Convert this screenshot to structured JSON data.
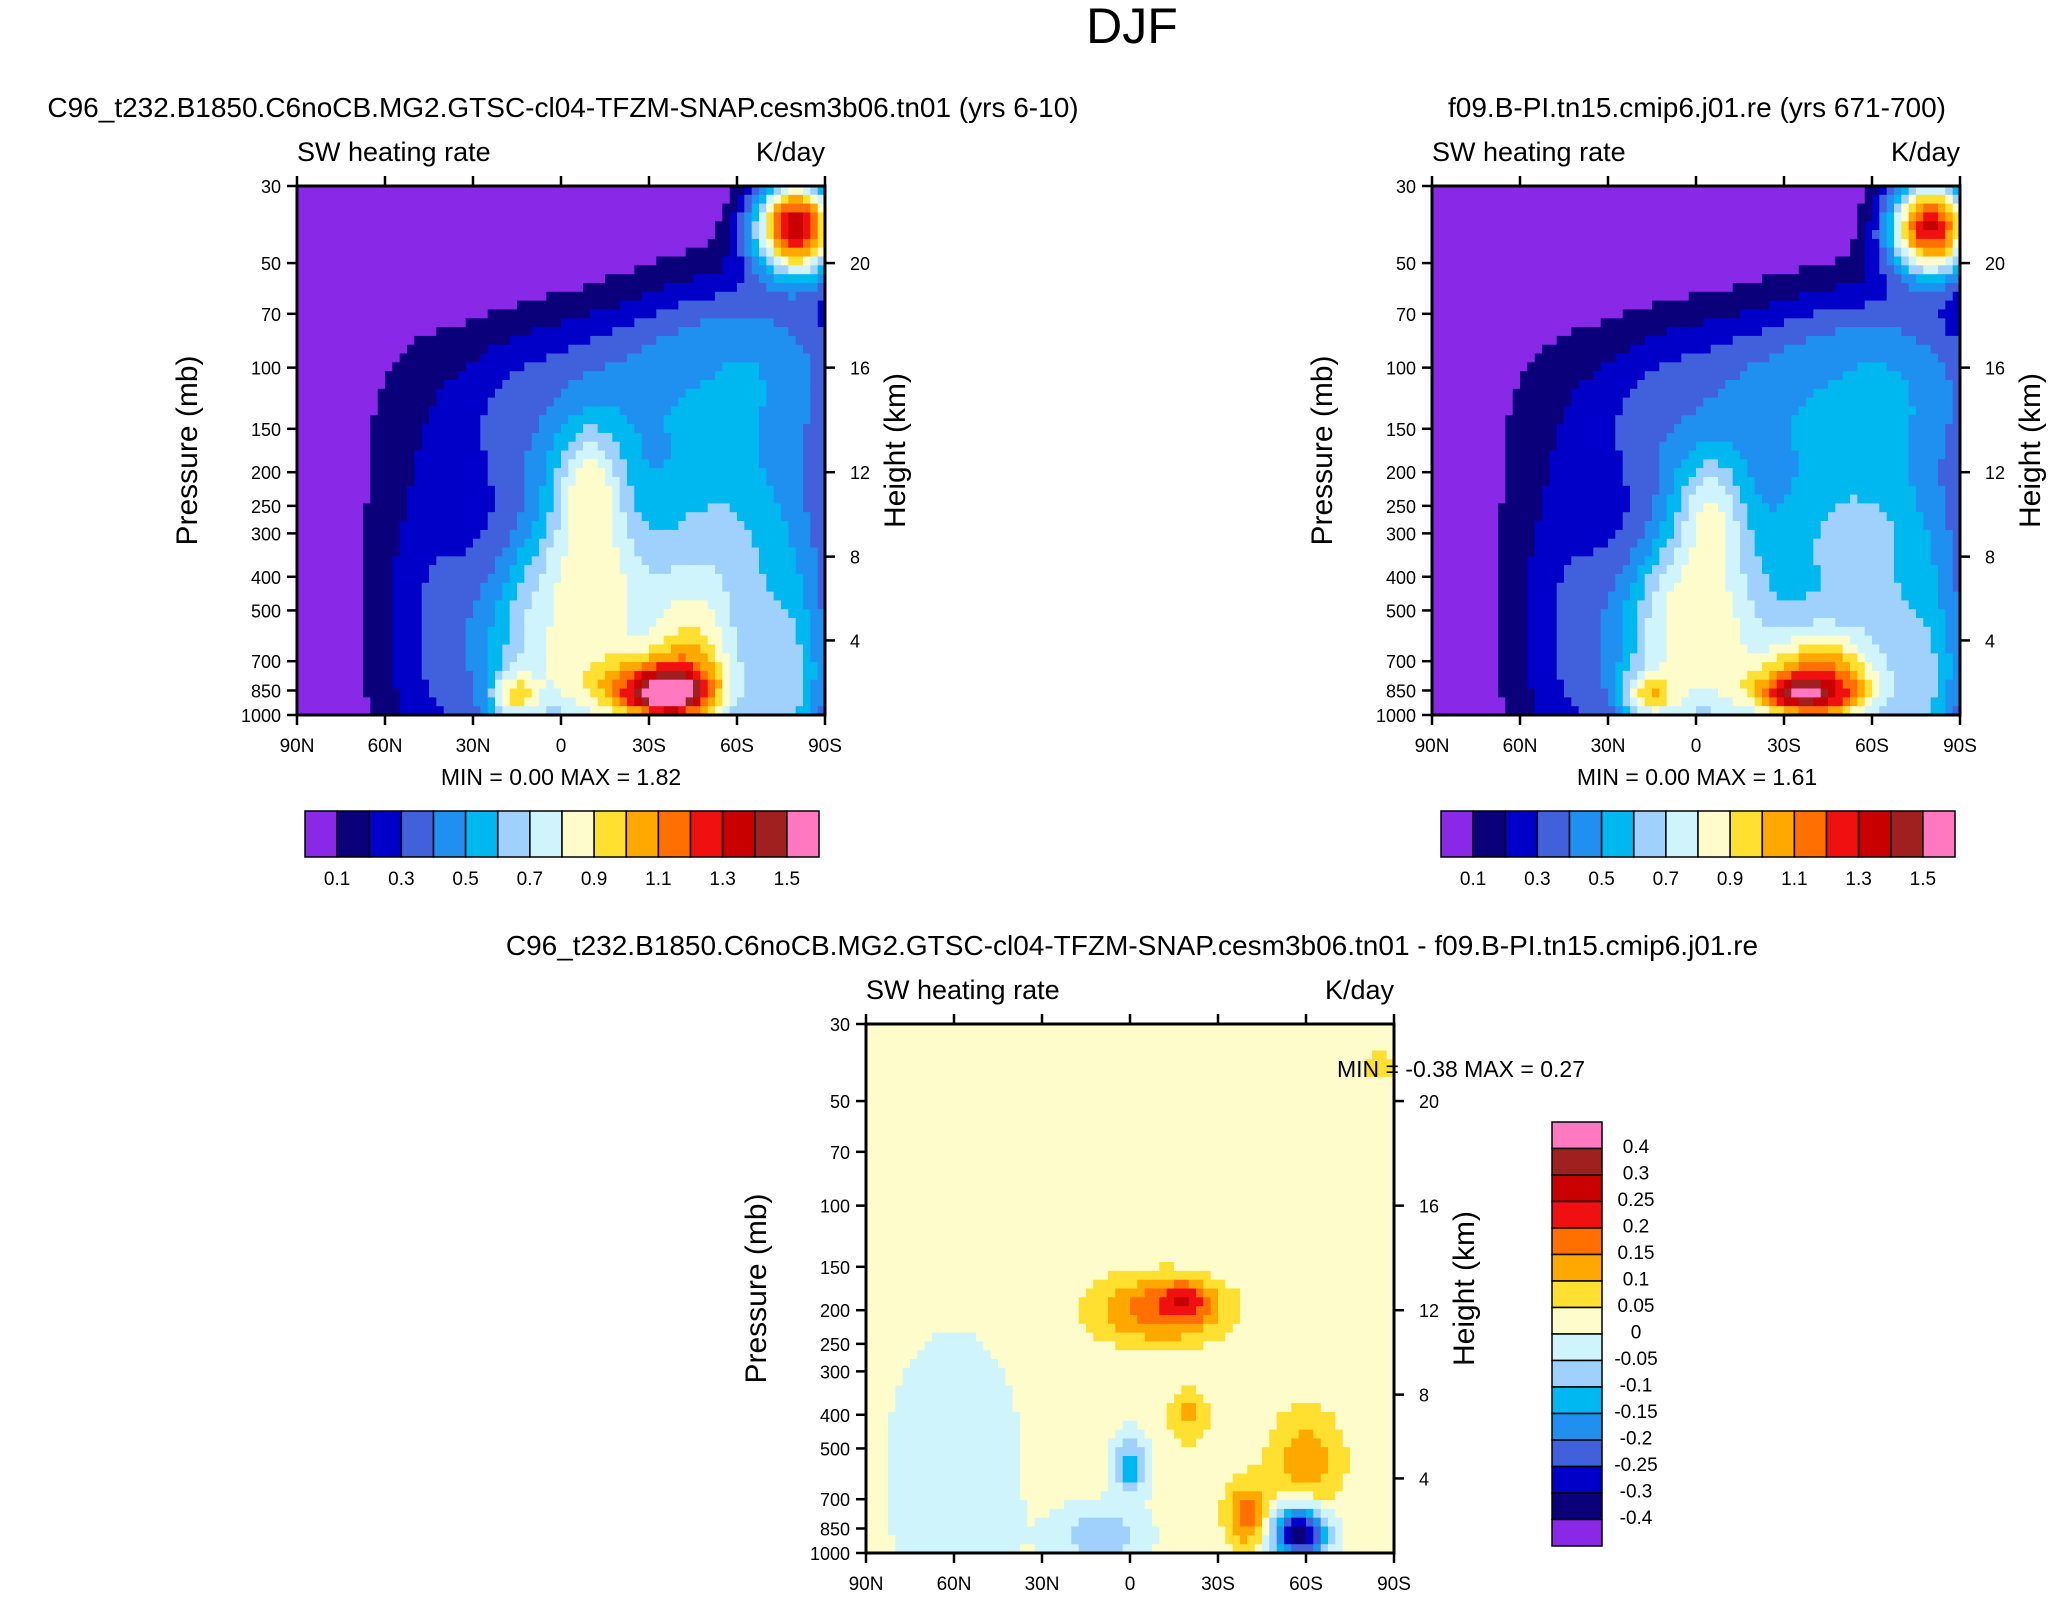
{
  "figure_title": "DJF",
  "palette": [
    "#8a28e8",
    "#0a007a",
    "#0000c8",
    "#4060dc",
    "#2090f0",
    "#00b8f0",
    "#a0d0fc",
    "#d0f4fc",
    "#fffccc",
    "#ffe030",
    "#ffa800",
    "#ff7000",
    "#f01010",
    "#c80000",
    "#a02020",
    "#ff78c0"
  ],
  "diff_palette": [
    "#8a28e8",
    "#0a007a",
    "#0000c8",
    "#4060dc",
    "#2090f0",
    "#00b8f0",
    "#a0d0fc",
    "#d0f4fc",
    "#fffccc",
    "#ffe030",
    "#ffa800",
    "#ff7000",
    "#f01010",
    "#c80000",
    "#a02020",
    "#ff78c0"
  ],
  "chart_data": [
    {
      "type": "heatmap",
      "id": "p1",
      "case_title": "C96_t232.B1850.C6noCB.MG2.GTSC-cl04-TFZM-SNAP.cesm3b06.tn01 (yrs 6-10)",
      "left_label": "SW heating rate",
      "right_label": "K/day",
      "ylabel": "Pressure (mb)",
      "ylabel_right": "Height (km)",
      "x_ticks": [
        {
          "lat": -90,
          "label": "90N"
        },
        {
          "lat": -60,
          "label": "60N"
        },
        {
          "lat": -30,
          "label": "30N"
        },
        {
          "lat": 0,
          "label": "0"
        },
        {
          "lat": 30,
          "label": "30S"
        },
        {
          "lat": 60,
          "label": "60S"
        },
        {
          "lat": 90,
          "label": "90S"
        }
      ],
      "y_ticks": [
        {
          "p": 30,
          "label": "30"
        },
        {
          "p": 50,
          "label": "50"
        },
        {
          "p": 70,
          "label": "70"
        },
        {
          "p": 100,
          "label": "100"
        },
        {
          "p": 150,
          "label": "150"
        },
        {
          "p": 200,
          "label": "200"
        },
        {
          "p": 250,
          "label": "250"
        },
        {
          "p": 300,
          "label": "300"
        },
        {
          "p": 400,
          "label": "400"
        },
        {
          "p": 500,
          "label": "500"
        },
        {
          "p": 700,
          "label": "700"
        },
        {
          "p": 850,
          "label": "850"
        },
        {
          "p": 1000,
          "label": "1000"
        }
      ],
      "height_ticks": [
        {
          "p": 50,
          "label": "20"
        },
        {
          "p": 100,
          "label": "16"
        },
        {
          "p": 200,
          "label": "12"
        },
        {
          "p": 350,
          "label": "8"
        },
        {
          "p": 610,
          "label": "4"
        }
      ],
      "ylim": [
        1000,
        30
      ],
      "xlim": [
        -90,
        90
      ],
      "min_max": "MIN =   0.00  MAX =   1.82",
      "levels": [
        "0.1",
        "0.2",
        "0.3",
        "0.4",
        "0.5",
        "0.6",
        "0.7",
        "0.8",
        "0.9",
        "1.0",
        "1.1",
        "1.2",
        "1.3",
        "1.4",
        "1.5"
      ],
      "colorbar_labels": [
        "0.1",
        "0.3",
        "0.5",
        "0.7",
        "0.9",
        "1.1",
        "1.3",
        "1.5"
      ],
      "field": {
        "background": 0,
        "blobs": [
          {
            "lat": -80,
            "p": 500,
            "rlat": 12,
            "rlp": 1.8,
            "v": 0.02
          },
          {
            "lat": -60,
            "p": 400,
            "rlat": 14,
            "rlp": 1.5,
            "v": 0.1
          },
          {
            "lat": -45,
            "p": 500,
            "rlat": 16,
            "rlp": 1.4,
            "v": 0.25
          },
          {
            "lat": 80,
            "p": 40,
            "rlat": 15,
            "rlp": 0.35,
            "v": 1.6
          },
          {
            "lat": 60,
            "p": 100,
            "rlat": 40,
            "rlp": 0.6,
            "v": 0.55
          },
          {
            "lat": 30,
            "p": 120,
            "rlat": 55,
            "rlp": 0.5,
            "v": 0.45
          },
          {
            "lat": -10,
            "p": 150,
            "rlat": 30,
            "rlp": 0.6,
            "v": 0.35
          },
          {
            "lat": 55,
            "p": 300,
            "rlat": 40,
            "rlp": 0.9,
            "v": 0.65
          },
          {
            "lat": 10,
            "p": 230,
            "rlat": 12,
            "rlp": 0.45,
            "v": 0.95
          },
          {
            "lat": 10,
            "p": 450,
            "rlat": 18,
            "rlp": 0.55,
            "v": 1.05
          },
          {
            "lat": 0,
            "p": 650,
            "rlat": 35,
            "rlp": 0.9,
            "v": 0.85
          },
          {
            "lat": 45,
            "p": 650,
            "rlat": 18,
            "rlp": 0.55,
            "v": 1.0
          },
          {
            "lat": 35,
            "p": 850,
            "rlat": 22,
            "rlp": 0.22,
            "v": 1.55
          },
          {
            "lat": 38,
            "p": 860,
            "rlat": 9,
            "rlp": 0.1,
            "v": 1.82
          },
          {
            "lat": -15,
            "p": 870,
            "rlat": 8,
            "rlp": 0.15,
            "v": 1.0
          },
          {
            "lat": 75,
            "p": 800,
            "rlat": 18,
            "rlp": 0.8,
            "v": 0.75
          }
        ]
      }
    },
    {
      "type": "heatmap",
      "id": "p2",
      "case_title": "f09.B-PI.tn15.cmip6.j01.re (yrs 671-700)",
      "left_label": "SW heating rate",
      "right_label": "K/day",
      "ylabel": "Pressure (mb)",
      "ylabel_right": "Height (km)",
      "x_ticks": [
        {
          "lat": -90,
          "label": "90N"
        },
        {
          "lat": -60,
          "label": "60N"
        },
        {
          "lat": -30,
          "label": "30N"
        },
        {
          "lat": 0,
          "label": "0"
        },
        {
          "lat": 30,
          "label": "30S"
        },
        {
          "lat": 60,
          "label": "60S"
        },
        {
          "lat": 90,
          "label": "90S"
        }
      ],
      "y_ticks": [
        {
          "p": 30,
          "label": "30"
        },
        {
          "p": 50,
          "label": "50"
        },
        {
          "p": 70,
          "label": "70"
        },
        {
          "p": 100,
          "label": "100"
        },
        {
          "p": 150,
          "label": "150"
        },
        {
          "p": 200,
          "label": "200"
        },
        {
          "p": 250,
          "label": "250"
        },
        {
          "p": 300,
          "label": "300"
        },
        {
          "p": 400,
          "label": "400"
        },
        {
          "p": 500,
          "label": "500"
        },
        {
          "p": 700,
          "label": "700"
        },
        {
          "p": 850,
          "label": "850"
        },
        {
          "p": 1000,
          "label": "1000"
        }
      ],
      "height_ticks": [
        {
          "p": 50,
          "label": "20"
        },
        {
          "p": 100,
          "label": "16"
        },
        {
          "p": 200,
          "label": "12"
        },
        {
          "p": 350,
          "label": "8"
        },
        {
          "p": 610,
          "label": "4"
        }
      ],
      "ylim": [
        1000,
        30
      ],
      "xlim": [
        -90,
        90
      ],
      "min_max": "MIN =   0.00  MAX =   1.61",
      "levels": [
        "0.1",
        "0.2",
        "0.3",
        "0.4",
        "0.5",
        "0.6",
        "0.7",
        "0.8",
        "0.9",
        "1.0",
        "1.1",
        "1.2",
        "1.3",
        "1.4",
        "1.5"
      ],
      "colorbar_labels": [
        "0.1",
        "0.3",
        "0.5",
        "0.7",
        "0.9",
        "1.1",
        "1.3",
        "1.5"
      ],
      "field": {
        "background": 0,
        "blobs": [
          {
            "lat": -80,
            "p": 500,
            "rlat": 12,
            "rlp": 1.8,
            "v": 0.02
          },
          {
            "lat": -60,
            "p": 400,
            "rlat": 14,
            "rlp": 1.5,
            "v": 0.1
          },
          {
            "lat": -45,
            "p": 500,
            "rlat": 16,
            "rlp": 1.4,
            "v": 0.25
          },
          {
            "lat": 80,
            "p": 40,
            "rlat": 15,
            "rlp": 0.35,
            "v": 1.5
          },
          {
            "lat": 60,
            "p": 110,
            "rlat": 40,
            "rlp": 0.6,
            "v": 0.55
          },
          {
            "lat": 30,
            "p": 120,
            "rlat": 55,
            "rlp": 0.5,
            "v": 0.45
          },
          {
            "lat": -10,
            "p": 150,
            "rlat": 30,
            "rlp": 0.6,
            "v": 0.35
          },
          {
            "lat": 55,
            "p": 320,
            "rlat": 40,
            "rlp": 0.9,
            "v": 0.7
          },
          {
            "lat": 5,
            "p": 280,
            "rlat": 12,
            "rlp": 0.45,
            "v": 0.9
          },
          {
            "lat": 0,
            "p": 520,
            "rlat": 16,
            "rlp": 0.45,
            "v": 1.05
          },
          {
            "lat": 0,
            "p": 650,
            "rlat": 35,
            "rlp": 0.9,
            "v": 0.85
          },
          {
            "lat": 45,
            "p": 780,
            "rlat": 25,
            "rlp": 0.35,
            "v": 1.2
          },
          {
            "lat": 40,
            "p": 860,
            "rlat": 20,
            "rlp": 0.15,
            "v": 1.45
          },
          {
            "lat": 37,
            "p": 860,
            "rlat": 7,
            "rlp": 0.08,
            "v": 1.61
          },
          {
            "lat": -15,
            "p": 870,
            "rlat": 9,
            "rlp": 0.15,
            "v": 1.05
          },
          {
            "lat": 75,
            "p": 800,
            "rlat": 18,
            "rlp": 0.8,
            "v": 0.7
          }
        ]
      }
    },
    {
      "type": "heatmap",
      "id": "p3",
      "case_title": "C96_t232.B1850.C6noCB.MG2.GTSC-cl04-TFZM-SNAP.cesm3b06.tn01 - f09.B-PI.tn15.cmip6.j01.re",
      "left_label": "SW heating rate",
      "right_label": "K/day",
      "ylabel": "Pressure (mb)",
      "ylabel_right": "Height (km)",
      "x_ticks": [
        {
          "lat": -90,
          "label": "90N"
        },
        {
          "lat": -60,
          "label": "60N"
        },
        {
          "lat": -30,
          "label": "30N"
        },
        {
          "lat": 0,
          "label": "0"
        },
        {
          "lat": 30,
          "label": "30S"
        },
        {
          "lat": 60,
          "label": "60S"
        },
        {
          "lat": 90,
          "label": "90S"
        }
      ],
      "y_ticks": [
        {
          "p": 30,
          "label": "30"
        },
        {
          "p": 50,
          "label": "50"
        },
        {
          "p": 70,
          "label": "70"
        },
        {
          "p": 100,
          "label": "100"
        },
        {
          "p": 150,
          "label": "150"
        },
        {
          "p": 200,
          "label": "200"
        },
        {
          "p": 250,
          "label": "250"
        },
        {
          "p": 300,
          "label": "300"
        },
        {
          "p": 400,
          "label": "400"
        },
        {
          "p": 500,
          "label": "500"
        },
        {
          "p": 700,
          "label": "700"
        },
        {
          "p": 850,
          "label": "850"
        },
        {
          "p": 1000,
          "label": "1000"
        }
      ],
      "height_ticks": [
        {
          "p": 50,
          "label": "20"
        },
        {
          "p": 100,
          "label": "16"
        },
        {
          "p": 200,
          "label": "12"
        },
        {
          "p": 350,
          "label": "8"
        },
        {
          "p": 610,
          "label": "4"
        }
      ],
      "ylim": [
        1000,
        30
      ],
      "xlim": [
        -90,
        90
      ],
      "min_max": "MIN =  -0.38  MAX =   0.27",
      "levels": [
        "-0.4",
        "-0.3",
        "-0.25",
        "-0.2",
        "-0.15",
        "-0.1",
        "-0.05",
        "0",
        "0.05",
        "0.1",
        "0.15",
        "0.2",
        "0.25",
        "0.3",
        "0.4"
      ],
      "colorbar_labels": [
        "0.4",
        "0.3",
        "0.25",
        "0.2",
        "0.15",
        "0.1",
        "0.05",
        "0",
        "-0.05",
        "-0.1",
        "-0.15",
        "-0.2",
        "-0.25",
        "-0.3",
        "-0.4"
      ],
      "field": {
        "background": 0.02,
        "blobs": [
          {
            "lat": -60,
            "p": 600,
            "rlat": 22,
            "rlp": 0.9,
            "v": -0.05
          },
          {
            "lat": 10,
            "p": 200,
            "rlat": 22,
            "rlp": 0.22,
            "v": 0.2
          },
          {
            "lat": 18,
            "p": 190,
            "rlat": 8,
            "rlp": 0.12,
            "v": 0.27
          },
          {
            "lat": 20,
            "p": 400,
            "rlat": 7,
            "rlp": 0.18,
            "v": 0.12
          },
          {
            "lat": 0,
            "p": 560,
            "rlat": 6,
            "rlp": 0.2,
            "v": -0.15
          },
          {
            "lat": 60,
            "p": 550,
            "rlat": 12,
            "rlp": 0.35,
            "v": 0.15
          },
          {
            "lat": 40,
            "p": 780,
            "rlat": 7,
            "rlp": 0.22,
            "v": 0.2
          },
          {
            "lat": 58,
            "p": 880,
            "rlat": 9,
            "rlp": 0.18,
            "v": -0.38
          },
          {
            "lat": -10,
            "p": 900,
            "rlat": 15,
            "rlp": 0.2,
            "v": -0.1
          },
          {
            "lat": 85,
            "p": 40,
            "rlat": 5,
            "rlp": 0.1,
            "v": 0.1
          }
        ]
      }
    }
  ]
}
